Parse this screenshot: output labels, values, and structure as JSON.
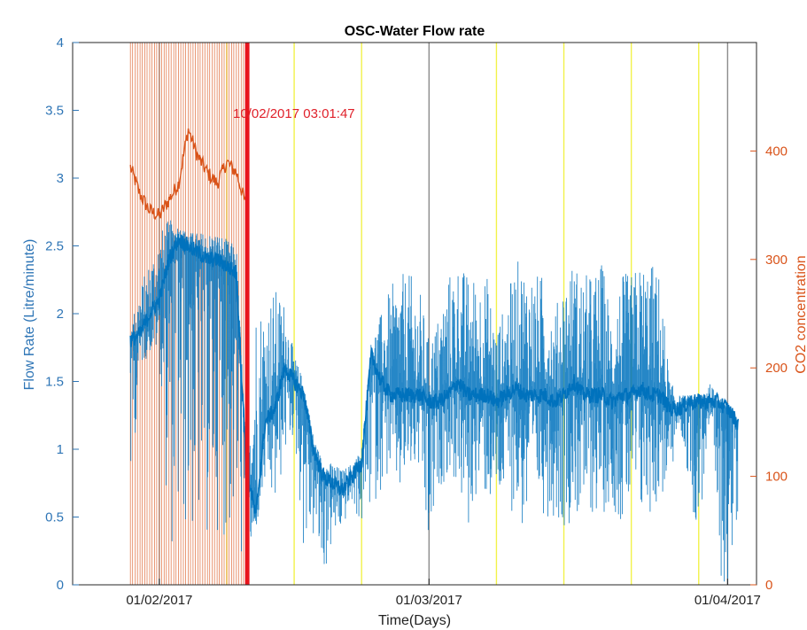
{
  "chart_data": {
    "type": "line",
    "title": "OSC-Water Flow rate",
    "xlabel": "Time(Days)",
    "ylabel_left": "Flow Rate (Litre/minute)",
    "ylabel_right": "CO2 concentration",
    "x_range": [
      "2017-01-23",
      "2017-04-04"
    ],
    "x_ticks": [
      {
        "date": "2017-02-01",
        "label": "01/02/2017"
      },
      {
        "date": "2017-03-01",
        "label": "01/03/2017"
      },
      {
        "date": "2017-04-01",
        "label": "01/04/2017"
      }
    ],
    "ylim_left": [
      0,
      4
    ],
    "yticks_left": [
      "0",
      "0.5",
      "1",
      "1.5",
      "2",
      "2.5",
      "3",
      "3.5",
      "4"
    ],
    "ylim_right": [
      0,
      500
    ],
    "yticks_right": [
      "0",
      "100",
      "200",
      "300",
      "400"
    ],
    "grid": false,
    "colors": {
      "flow": "#0072bd",
      "co2": "#d95319",
      "marker": "#e8141c",
      "grey_lines": "#8c8c8c",
      "yellow_lines": "#f2f24a"
    },
    "annotation": {
      "date": "2017-02-10T03:01:47",
      "label": "10/02/2017 03:01:47"
    },
    "vertical_lines_grey": [
      "2017-02-01",
      "2017-03-01",
      "2017-04-01"
    ],
    "vertical_lines_yellow": [
      "2017-02-08",
      "2017-02-15",
      "2017-02-22",
      "2017-03-08",
      "2017-03-15",
      "2017-03-22",
      "2017-03-29"
    ],
    "series": [
      {
        "axis": "left",
        "x": [
          "2017-01-29",
          "2017-01-30",
          "2017-01-31",
          "2017-02-01",
          "2017-02-02",
          "2017-02-03",
          "2017-02-04",
          "2017-02-05",
          "2017-02-06",
          "2017-02-07",
          "2017-02-08",
          "2017-02-09",
          "2017-02-10",
          "2017-02-11",
          "2017-02-12",
          "2017-02-13",
          "2017-02-14",
          "2017-02-15",
          "2017-02-16",
          "2017-02-17",
          "2017-02-18",
          "2017-02-19",
          "2017-02-20",
          "2017-02-21",
          "2017-02-22",
          "2017-02-23",
          "2017-02-24",
          "2017-02-25",
          "2017-02-26",
          "2017-02-27",
          "2017-02-28",
          "2017-03-01",
          "2017-03-02",
          "2017-03-03",
          "2017-03-04",
          "2017-03-05",
          "2017-03-06",
          "2017-03-07",
          "2017-03-08",
          "2017-03-09",
          "2017-03-10",
          "2017-03-11",
          "2017-03-12",
          "2017-03-13",
          "2017-03-14",
          "2017-03-15",
          "2017-03-16",
          "2017-03-17",
          "2017-03-18",
          "2017-03-19",
          "2017-03-20",
          "2017-03-21",
          "2017-03-22",
          "2017-03-23",
          "2017-03-24",
          "2017-03-25",
          "2017-03-26",
          "2017-03-27",
          "2017-03-28",
          "2017-03-29",
          "2017-03-30",
          "2017-03-31",
          "2017-04-01",
          "2017-04-02"
        ],
        "values": [
          1.8,
          1.85,
          2.0,
          2.1,
          2.4,
          2.55,
          2.5,
          2.45,
          2.4,
          2.4,
          2.35,
          2.3,
          0.9,
          0.5,
          1.2,
          1.3,
          1.6,
          1.5,
          1.4,
          1.0,
          0.8,
          0.75,
          0.7,
          0.8,
          0.9,
          1.7,
          1.5,
          1.4,
          1.4,
          1.4,
          1.4,
          1.35,
          1.35,
          1.4,
          1.5,
          1.4,
          1.4,
          1.4,
          1.35,
          1.4,
          1.45,
          1.4,
          1.4,
          1.4,
          1.35,
          1.4,
          1.5,
          1.4,
          1.4,
          1.4,
          1.35,
          1.4,
          1.4,
          1.45,
          1.4,
          1.4,
          1.3,
          1.3,
          1.35,
          1.35,
          1.35,
          1.35,
          1.3,
          1.2
        ],
        "max": [
          1.9,
          2.2,
          2.4,
          2.6,
          2.7,
          2.65,
          2.6,
          2.6,
          2.6,
          2.6,
          2.55,
          2.5,
          1.0,
          2.2,
          2.1,
          2.2,
          2.1,
          1.7,
          1.5,
          1.1,
          0.9,
          0.9,
          0.85,
          0.9,
          1.0,
          1.8,
          2.0,
          2.2,
          2.3,
          2.3,
          2.2,
          1.8,
          2.0,
          2.3,
          2.4,
          2.3,
          2.3,
          2.3,
          1.9,
          2.1,
          2.4,
          2.4,
          2.3,
          2.3,
          2.0,
          2.3,
          2.4,
          2.3,
          2.3,
          2.4,
          2.0,
          2.3,
          2.3,
          2.4,
          2.4,
          2.3,
          1.5,
          1.4,
          1.4,
          1.4,
          1.5,
          1.4,
          1.3,
          1.2
        ],
        "min": [
          0.6,
          1.6,
          1.7,
          1.7,
          0.2,
          0.3,
          0.3,
          0.3,
          0.3,
          0.4,
          0.3,
          0.3,
          0.0,
          0.4,
          0.7,
          0.5,
          0.9,
          1.1,
          0.2,
          0.3,
          0.0,
          0.3,
          0.4,
          0.6,
          0.4,
          0.5,
          0.7,
          0.8,
          0.6,
          0.8,
          0.8,
          0.0,
          0.7,
          0.8,
          0.7,
          0.3,
          0.7,
          0.6,
          0.5,
          0.6,
          0.5,
          0.3,
          0.6,
          0.5,
          0.5,
          0.4,
          0.5,
          0.4,
          0.5,
          0.5,
          0.6,
          0.4,
          0.5,
          0.4,
          0.5,
          0.6,
          0.7,
          1.2,
          0.7,
          0.3,
          1.1,
          0.0,
          0.0,
          0.0
        ]
      },
      {
        "axis": "right",
        "x": [
          "2017-01-29",
          "2017-01-30",
          "2017-01-31",
          "2017-02-01",
          "2017-02-02",
          "2017-02-03",
          "2017-02-04",
          "2017-02-05",
          "2017-02-06",
          "2017-02-07",
          "2017-02-08",
          "2017-02-09",
          "2017-02-10"
        ],
        "values": [
          385,
          360,
          345,
          340,
          355,
          370,
          420,
          395,
          380,
          370,
          390,
          380,
          350
        ],
        "pulse_max": 500,
        "pulse_min": 0
      }
    ]
  }
}
